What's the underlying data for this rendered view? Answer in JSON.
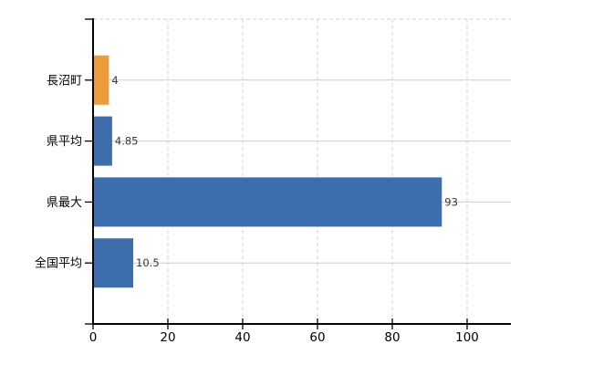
{
  "page": {
    "background": "#ffffff"
  },
  "chart_data": {
    "type": "bar",
    "orientation": "horizontal",
    "title": "",
    "xlabel": "",
    "ylabel": "",
    "categories": [
      "長沼町",
      "県平均",
      "県最大",
      "全国平均"
    ],
    "values": [
      4,
      4.85,
      93,
      10.5
    ],
    "value_labels": [
      "4",
      "4.85",
      "93",
      "10.5"
    ],
    "bar_colors": [
      "#EE9B3C",
      "#3C6EAE",
      "#3C6EAE",
      "#3C6EAE"
    ],
    "x_ticks": [
      0,
      20,
      40,
      60,
      80,
      100
    ],
    "xlim": [
      0,
      111.7
    ],
    "legend_position": "none",
    "grid": {
      "vertical": "dashed",
      "horizontal": "category-center-lines",
      "top_border": "dashed"
    },
    "colors": {
      "axis": "#000000",
      "tick_label": "#000000",
      "category_label": "#000000",
      "value_label": "#363636",
      "grid_vertical": "#d6d3d6",
      "grid_horizontal": "#c7d0c7",
      "accent_orange": "#EE9B3C",
      "accent_blue": "#3C6EAE"
    }
  }
}
